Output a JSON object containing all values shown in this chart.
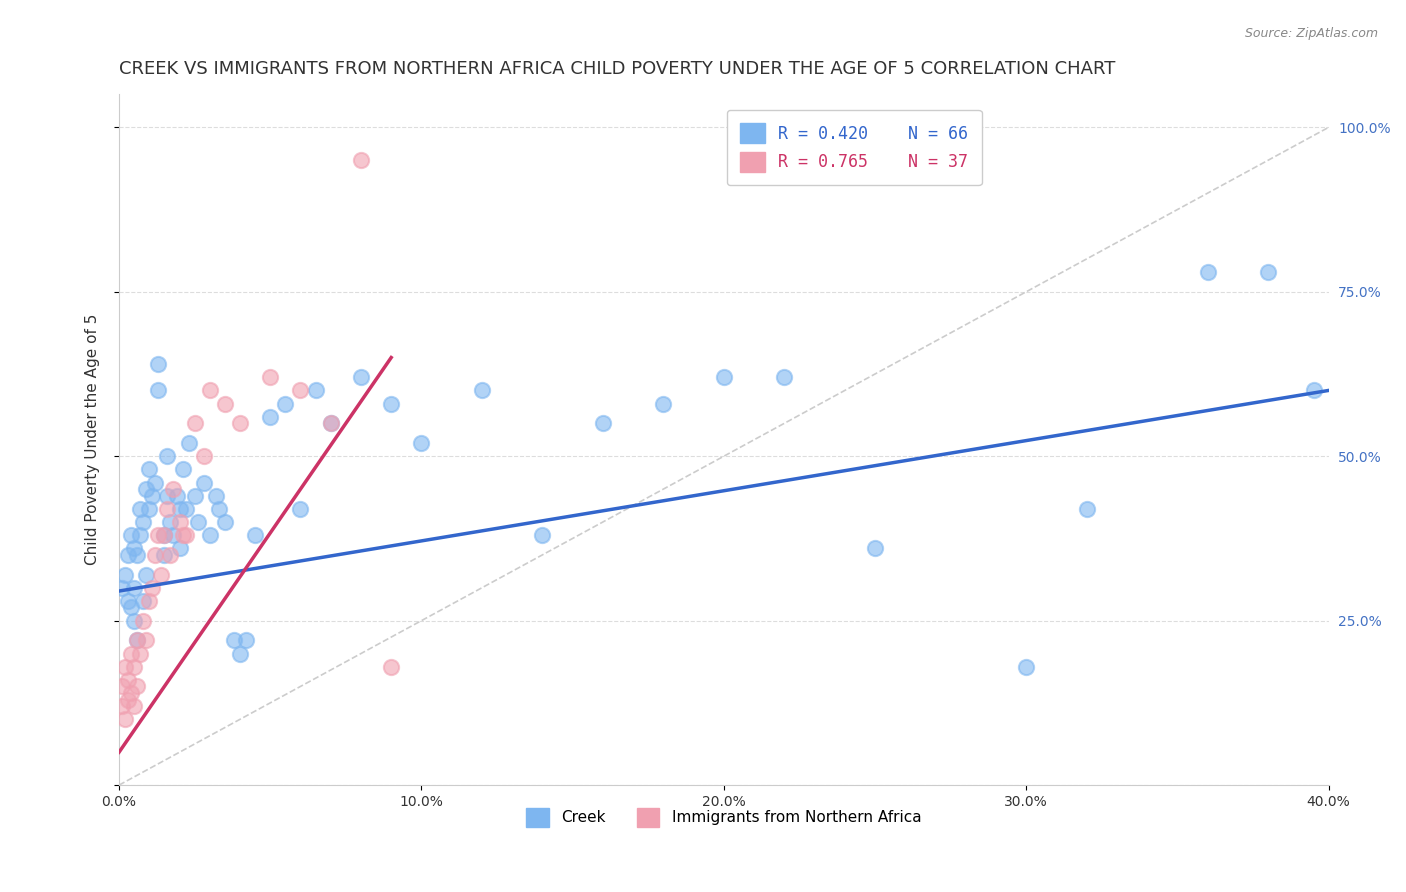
{
  "title": "CREEK VS IMMIGRANTS FROM NORTHERN AFRICA CHILD POVERTY UNDER THE AGE OF 5 CORRELATION CHART",
  "source": "Source: ZipAtlas.com",
  "ylabel": "Child Poverty Under the Age of 5",
  "xlim": [
    0.0,
    0.4
  ],
  "ylim": [
    0.0,
    1.05
  ],
  "yticks": [
    0.0,
    0.25,
    0.5,
    0.75,
    1.0
  ],
  "xticks": [
    0.0,
    0.1,
    0.2,
    0.3,
    0.4
  ],
  "xtick_labels": [
    "0.0%",
    "10.0%",
    "20.0%",
    "30.0%",
    "40.0%"
  ],
  "ytick_labels_right": [
    "",
    "25.0%",
    "50.0%",
    "75.0%",
    "100.0%"
  ],
  "creek_color": "#7EB6F0",
  "immigrant_color": "#F0A0B0",
  "creek_line_color": "#3366CC",
  "immigrant_line_color": "#CC3366",
  "legend_creek_R": "R = 0.420",
  "legend_creek_N": "N = 66",
  "legend_imm_R": "R = 0.765",
  "legend_imm_N": "N = 37",
  "creek_x": [
    0.001,
    0.002,
    0.003,
    0.003,
    0.004,
    0.004,
    0.005,
    0.005,
    0.005,
    0.006,
    0.006,
    0.007,
    0.007,
    0.008,
    0.008,
    0.009,
    0.009,
    0.01,
    0.01,
    0.011,
    0.012,
    0.013,
    0.013,
    0.015,
    0.015,
    0.016,
    0.016,
    0.017,
    0.018,
    0.019,
    0.02,
    0.02,
    0.021,
    0.022,
    0.023,
    0.025,
    0.026,
    0.028,
    0.03,
    0.032,
    0.033,
    0.035,
    0.038,
    0.04,
    0.042,
    0.045,
    0.05,
    0.055,
    0.06,
    0.065,
    0.07,
    0.08,
    0.09,
    0.1,
    0.12,
    0.14,
    0.16,
    0.18,
    0.2,
    0.22,
    0.25,
    0.3,
    0.32,
    0.36,
    0.38,
    0.395
  ],
  "creek_y": [
    0.3,
    0.32,
    0.28,
    0.35,
    0.27,
    0.38,
    0.25,
    0.3,
    0.36,
    0.22,
    0.35,
    0.42,
    0.38,
    0.28,
    0.4,
    0.45,
    0.32,
    0.48,
    0.42,
    0.44,
    0.46,
    0.6,
    0.64,
    0.35,
    0.38,
    0.44,
    0.5,
    0.4,
    0.38,
    0.44,
    0.42,
    0.36,
    0.48,
    0.42,
    0.52,
    0.44,
    0.4,
    0.46,
    0.38,
    0.44,
    0.42,
    0.4,
    0.22,
    0.2,
    0.22,
    0.38,
    0.56,
    0.58,
    0.42,
    0.6,
    0.55,
    0.62,
    0.58,
    0.52,
    0.6,
    0.38,
    0.55,
    0.58,
    0.62,
    0.62,
    0.36,
    0.18,
    0.42,
    0.78,
    0.78,
    0.6
  ],
  "immigrant_x": [
    0.001,
    0.001,
    0.002,
    0.002,
    0.003,
    0.003,
    0.004,
    0.004,
    0.005,
    0.005,
    0.006,
    0.006,
    0.007,
    0.008,
    0.009,
    0.01,
    0.011,
    0.012,
    0.013,
    0.014,
    0.015,
    0.016,
    0.017,
    0.018,
    0.02,
    0.021,
    0.022,
    0.025,
    0.028,
    0.03,
    0.035,
    0.04,
    0.05,
    0.06,
    0.07,
    0.08,
    0.09
  ],
  "immigrant_y": [
    0.12,
    0.15,
    0.1,
    0.18,
    0.13,
    0.16,
    0.14,
    0.2,
    0.12,
    0.18,
    0.15,
    0.22,
    0.2,
    0.25,
    0.22,
    0.28,
    0.3,
    0.35,
    0.38,
    0.32,
    0.38,
    0.42,
    0.35,
    0.45,
    0.4,
    0.38,
    0.38,
    0.55,
    0.5,
    0.6,
    0.58,
    0.55,
    0.62,
    0.6,
    0.55,
    0.95,
    0.18
  ],
  "creek_line_x": [
    0.0,
    0.4
  ],
  "creek_line_y": [
    0.295,
    0.6
  ],
  "immigrant_line_x": [
    0.0,
    0.09
  ],
  "immigrant_line_y": [
    0.05,
    0.65
  ],
  "diag_line_x": [
    0.0,
    0.4
  ],
  "diag_line_y": [
    0.0,
    1.0
  ],
  "background_color": "#ffffff",
  "grid_color": "#dddddd",
  "title_fontsize": 13,
  "label_fontsize": 11,
  "tick_fontsize": 10,
  "legend_fontsize": 12
}
